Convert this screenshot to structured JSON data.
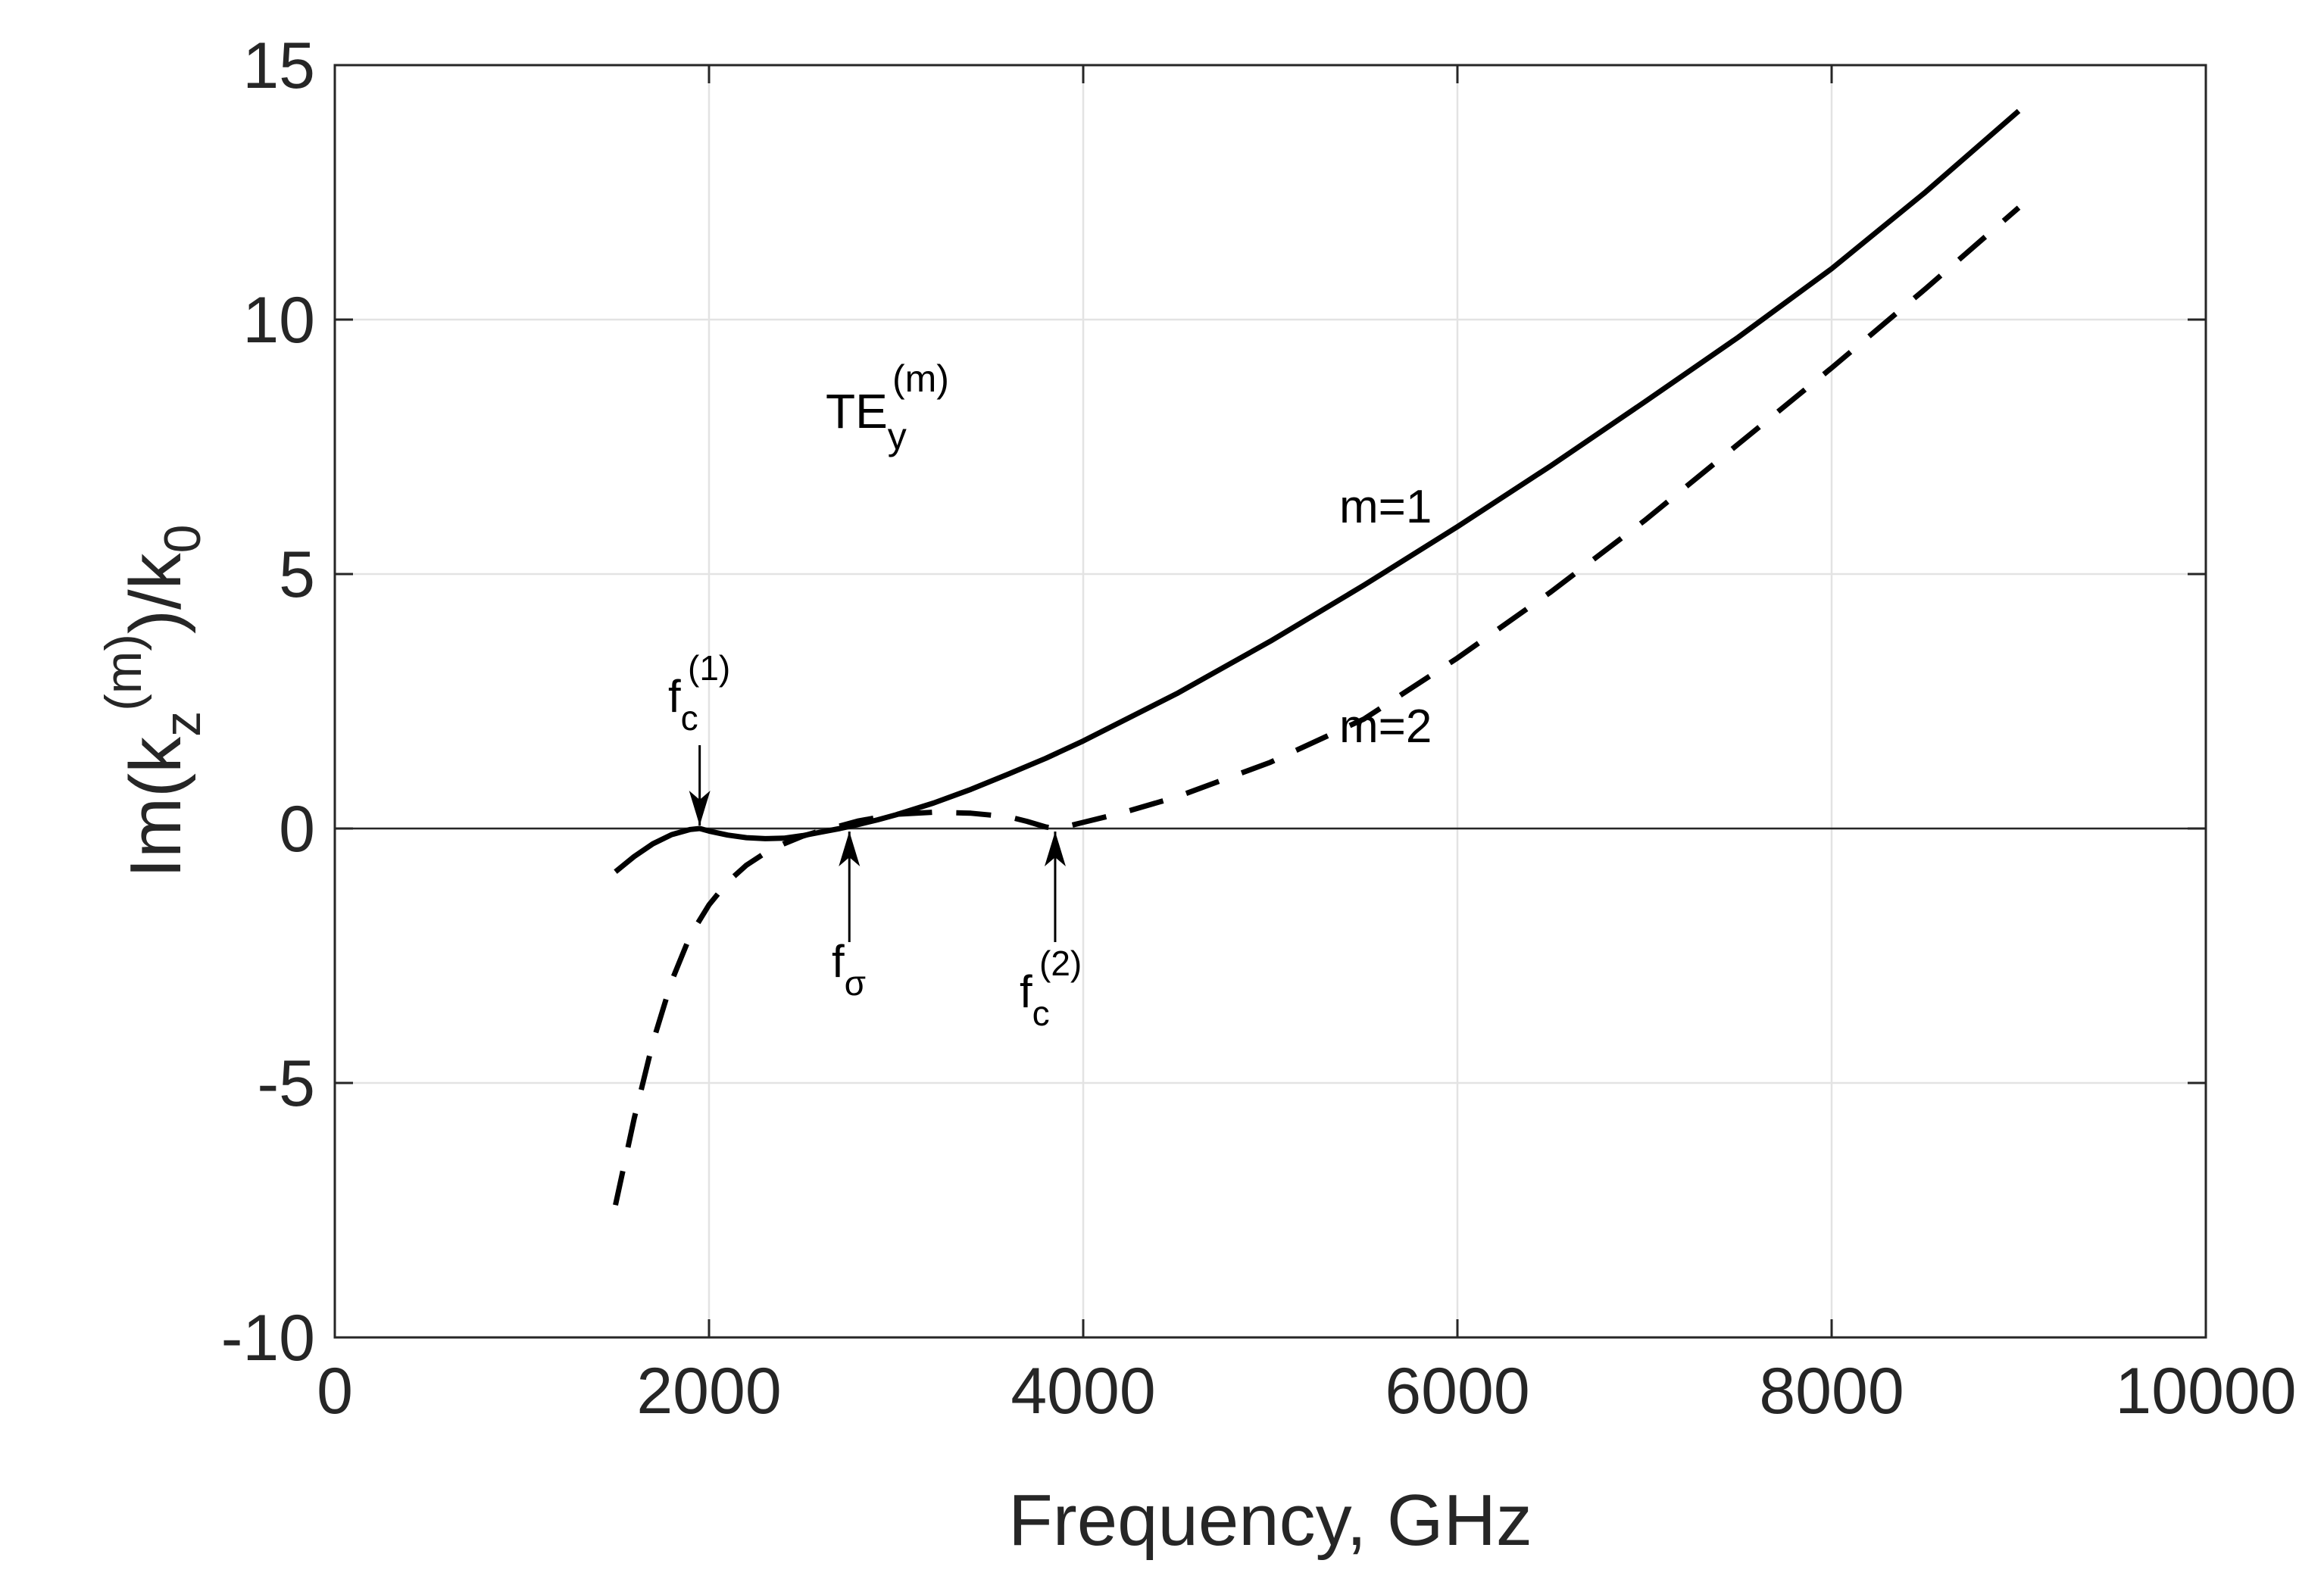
{
  "chart_data": {
    "type": "line",
    "title": "",
    "xlabel": "Frequency, GHz",
    "ylabel": {
      "prefix": "Im(k",
      "sub": "z",
      "sup": "(m)",
      "middle": ")/k",
      "sub2": "0"
    },
    "xlim": [
      0,
      10000
    ],
    "ylim": [
      -10,
      15
    ],
    "grid": true,
    "xticks": [
      0,
      2000,
      4000,
      6000,
      8000,
      10000
    ],
    "xtick_labels": [
      "0",
      "2000",
      "4000",
      "6000",
      "8000",
      "10000"
    ],
    "yticks": [
      -10,
      -5,
      0,
      5,
      10,
      15
    ],
    "ytick_labels": [
      "-10",
      "-5",
      "0",
      "5",
      "10",
      "15"
    ],
    "series": [
      {
        "name": "m=1",
        "style": "solid",
        "x": [
          1500,
          1600,
          1700,
          1800,
          1900,
          1950,
          2000,
          2100,
          2200,
          2300,
          2400,
          2500,
          2600,
          2700,
          2750,
          2800,
          2900,
          3000,
          3200,
          3400,
          3600,
          3800,
          4000,
          4500,
          5000,
          5500,
          6000,
          6500,
          7000,
          7500,
          8000,
          8500,
          9000
        ],
        "y": [
          -0.85,
          -0.55,
          -0.3,
          -0.12,
          -0.02,
          0.0,
          -0.05,
          -0.13,
          -0.18,
          -0.2,
          -0.19,
          -0.14,
          -0.07,
          0.0,
          0.04,
          0.08,
          0.17,
          0.27,
          0.5,
          0.77,
          1.07,
          1.38,
          1.72,
          2.65,
          3.68,
          4.78,
          5.93,
          7.13,
          8.38,
          9.65,
          11.0,
          12.5,
          14.1
        ]
      },
      {
        "name": "m=2",
        "style": "dashed",
        "x": [
          1500,
          1600,
          1700,
          1800,
          1900,
          2000,
          2100,
          2200,
          2300,
          2400,
          2500,
          2600,
          2700,
          2800,
          3000,
          3200,
          3400,
          3600,
          3700,
          3800,
          3850,
          3900,
          4000,
          4200,
          4500,
          5000,
          5500,
          6000,
          6500,
          7000,
          7500,
          8000,
          8500,
          9000
        ],
        "y": [
          -7.4,
          -5.7,
          -4.2,
          -3.0,
          -2.1,
          -1.5,
          -1.05,
          -0.72,
          -0.48,
          -0.3,
          -0.15,
          -0.04,
          0.05,
          0.15,
          0.28,
          0.32,
          0.3,
          0.23,
          0.14,
          0.03,
          0.0,
          0.03,
          0.12,
          0.3,
          0.62,
          1.3,
          2.15,
          3.35,
          4.65,
          6.05,
          7.55,
          9.05,
          10.6,
          12.2
        ]
      }
    ],
    "annotations": [
      {
        "id": "fc1",
        "base": "f",
        "sub": "c",
        "sup": "(1)",
        "x": 1950,
        "y": 0,
        "arrow": "down"
      },
      {
        "id": "fsigma",
        "base": "f",
        "sub": "σ",
        "sup": "",
        "x": 2750,
        "y": 0,
        "arrow": "up"
      },
      {
        "id": "fc2",
        "base": "f",
        "sub": "c",
        "sup": "(2)",
        "x": 3850,
        "y": 0,
        "arrow": "up"
      }
    ],
    "labels": [
      {
        "id": "te-label",
        "base": "TE",
        "sub": "y",
        "sup": "(m)"
      },
      {
        "id": "m1-label",
        "text": "m=1"
      },
      {
        "id": "m2-label",
        "text": "m=2"
      }
    ]
  }
}
